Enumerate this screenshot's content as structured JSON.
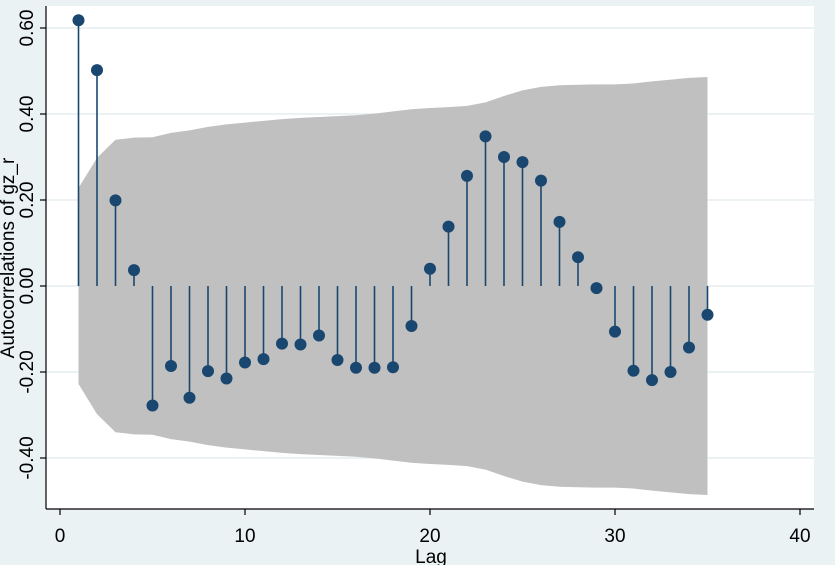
{
  "chart_data": {
    "type": "scatter",
    "subtype": "acf-stem",
    "xlabel": "Lag",
    "ylabel": "Autocorrelations of gz_r",
    "xlim": [
      0,
      40
    ],
    "ylim": [
      -0.5,
      0.6
    ],
    "xticks": [
      "0",
      "10",
      "20",
      "30",
      "40"
    ],
    "yticks": [
      "-0.40",
      "-0.20",
      "0.00",
      "0.20",
      "0.40",
      "0.60"
    ],
    "grid": true,
    "colors": {
      "points": "#1a476f",
      "band": "#c0c0c0",
      "grid": "#e6eef0",
      "background": "#eaf2f3",
      "plot_bg": "#ffffff"
    },
    "x": [
      1,
      2,
      3,
      4,
      5,
      6,
      7,
      8,
      9,
      10,
      11,
      12,
      13,
      14,
      15,
      16,
      17,
      18,
      19,
      20,
      21,
      22,
      23,
      24,
      25,
      26,
      27,
      28,
      29,
      30,
      31,
      32,
      33,
      34,
      35
    ],
    "values": [
      0.618,
      0.502,
      0.199,
      0.037,
      -0.278,
      -0.186,
      -0.26,
      -0.198,
      -0.215,
      -0.178,
      -0.17,
      -0.134,
      -0.136,
      -0.115,
      -0.172,
      -0.19,
      -0.19,
      -0.189,
      -0.093,
      0.04,
      0.138,
      0.256,
      0.348,
      0.3,
      0.288,
      0.245,
      0.149,
      0.067,
      -0.005,
      -0.106,
      -0.197,
      -0.219,
      -0.2,
      -0.143,
      -0.067
    ],
    "confidence_band": [
      0.228,
      0.298,
      0.34,
      0.345,
      0.346,
      0.356,
      0.362,
      0.37,
      0.376,
      0.38,
      0.384,
      0.388,
      0.391,
      0.393,
      0.395,
      0.397,
      0.401,
      0.406,
      0.411,
      0.414,
      0.416,
      0.419,
      0.427,
      0.442,
      0.455,
      0.463,
      0.467,
      0.468,
      0.469,
      0.469,
      0.471,
      0.476,
      0.48,
      0.484,
      0.486
    ]
  }
}
